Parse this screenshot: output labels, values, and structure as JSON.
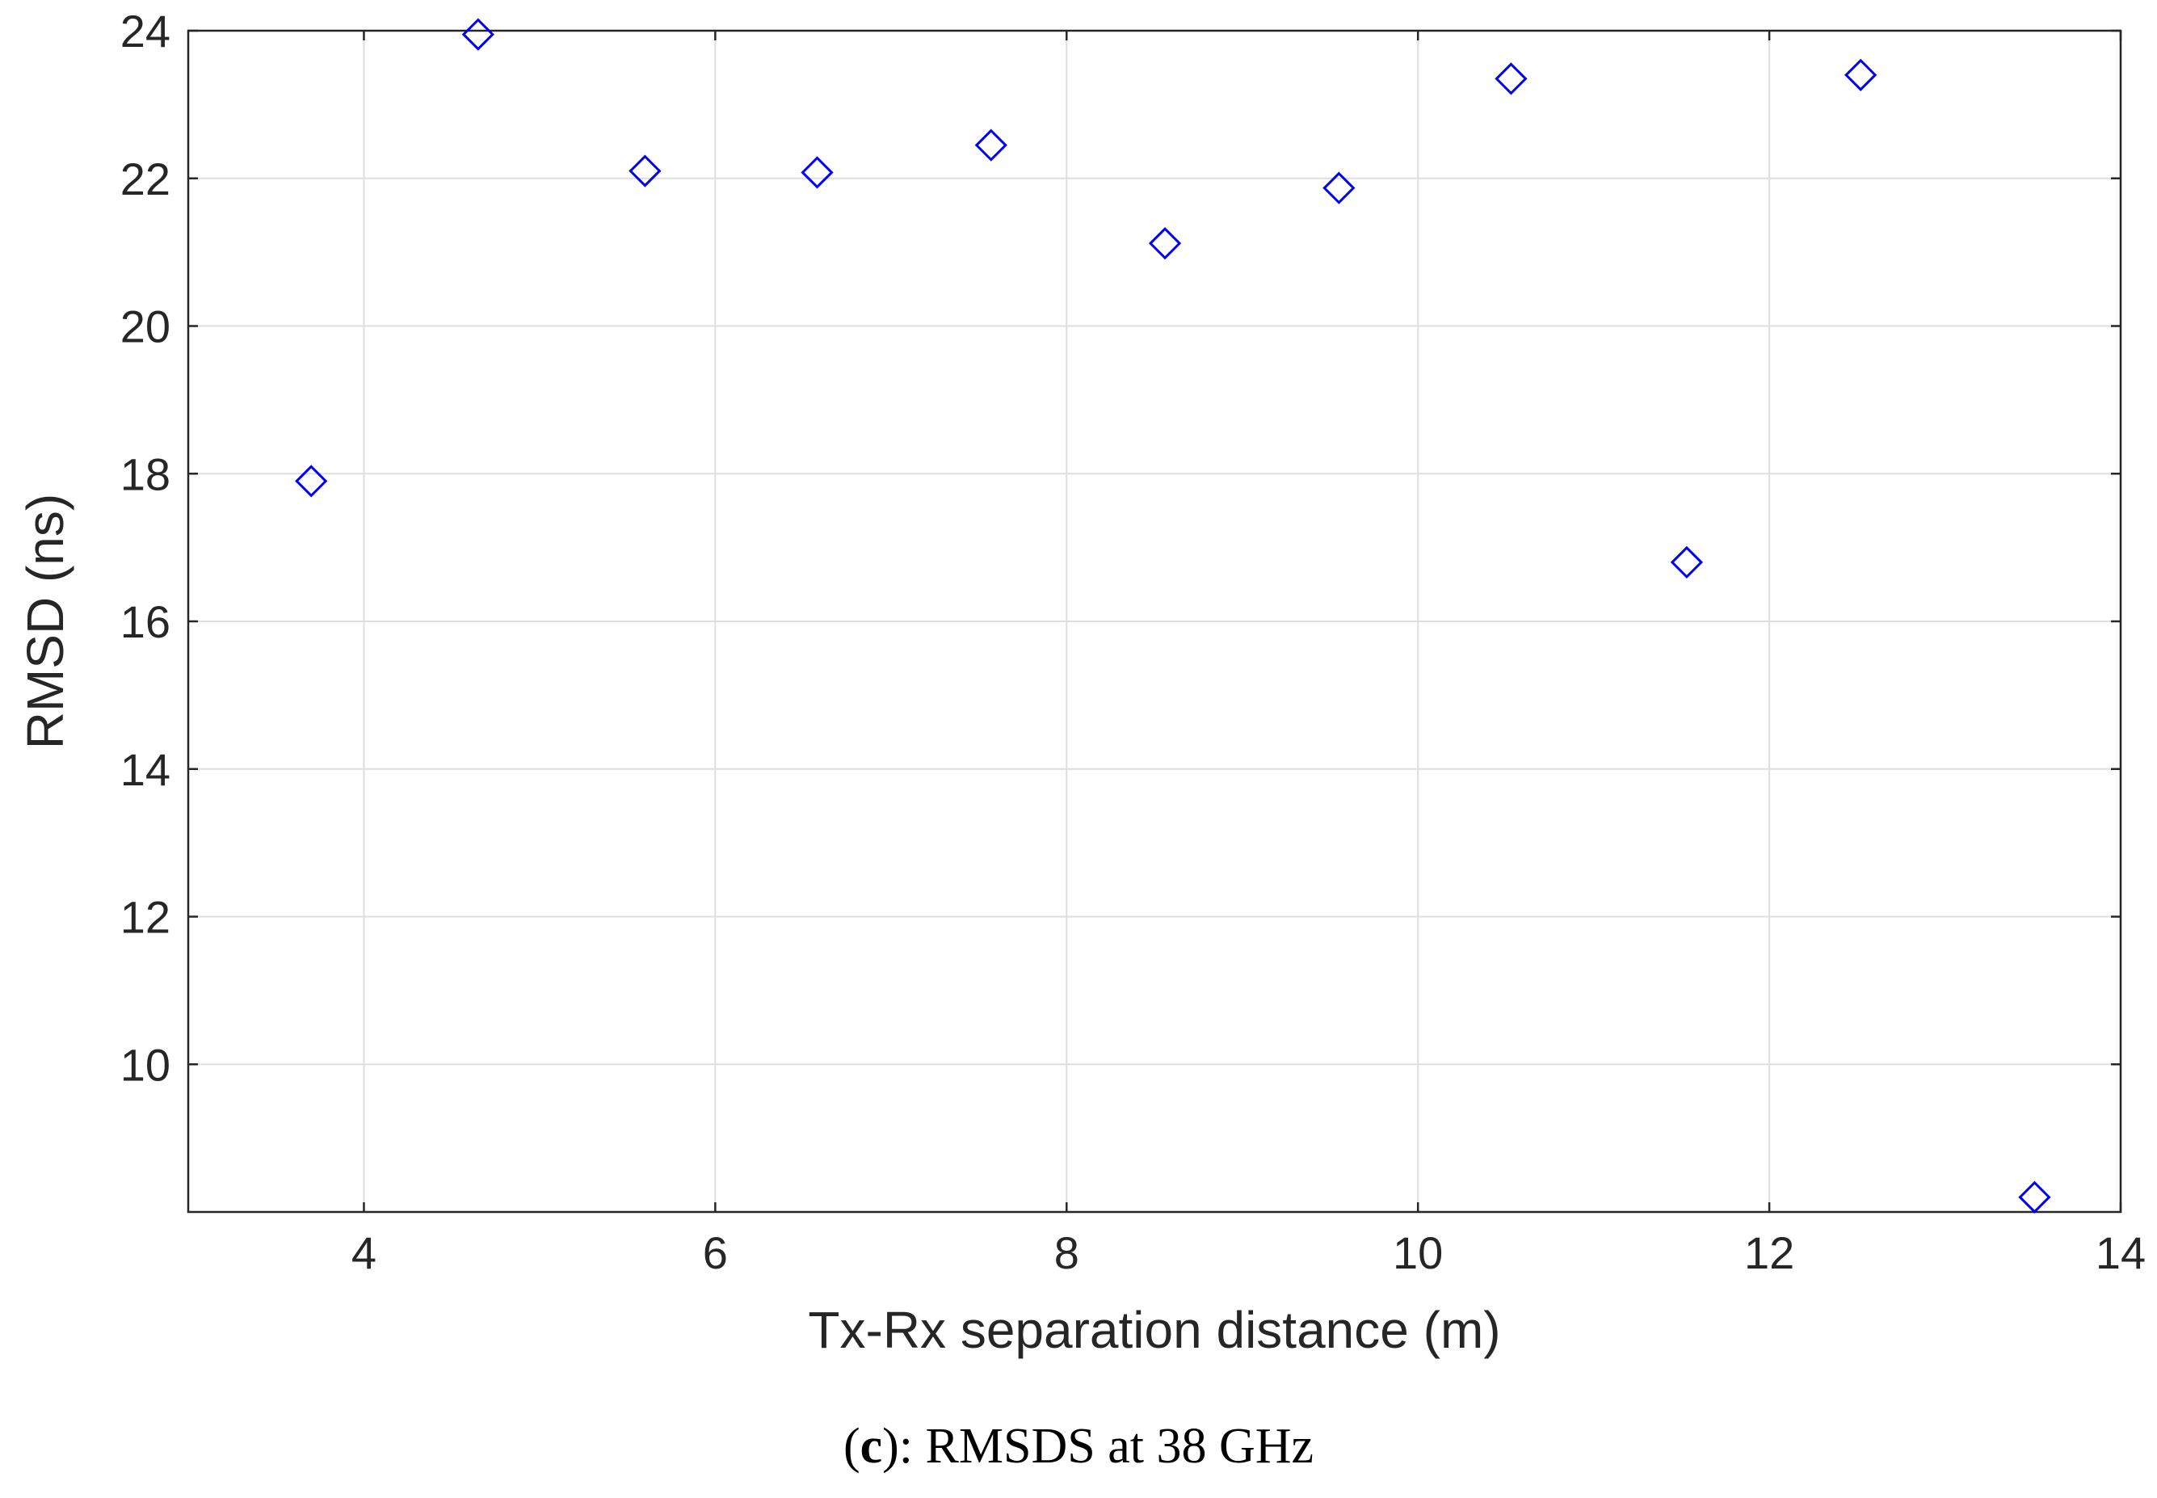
{
  "chart_data": {
    "type": "scatter",
    "title": "",
    "xlabel": "Tx-Rx separation distance (m)",
    "ylabel": "RMSD (ns)",
    "xlim": [
      3,
      14
    ],
    "ylim": [
      8,
      24
    ],
    "xticks": [
      4,
      6,
      8,
      10,
      12,
      14
    ],
    "yticks": [
      10,
      12,
      14,
      16,
      18,
      20,
      22,
      24
    ],
    "grid": true,
    "marker": "diamond",
    "marker_color": "#0000ff",
    "series": [
      {
        "x": [
          3.7,
          4.65,
          5.6,
          6.58,
          7.57,
          8.56,
          9.55,
          10.53,
          11.53,
          12.52,
          13.51
        ],
        "y": [
          17.9,
          23.95,
          22.1,
          22.08,
          22.45,
          21.12,
          21.87,
          23.35,
          16.8,
          23.4,
          8.2
        ]
      }
    ]
  },
  "caption": {
    "open": "(",
    "letter": "c",
    "rest": "): RMSDS at 38 GHz"
  }
}
